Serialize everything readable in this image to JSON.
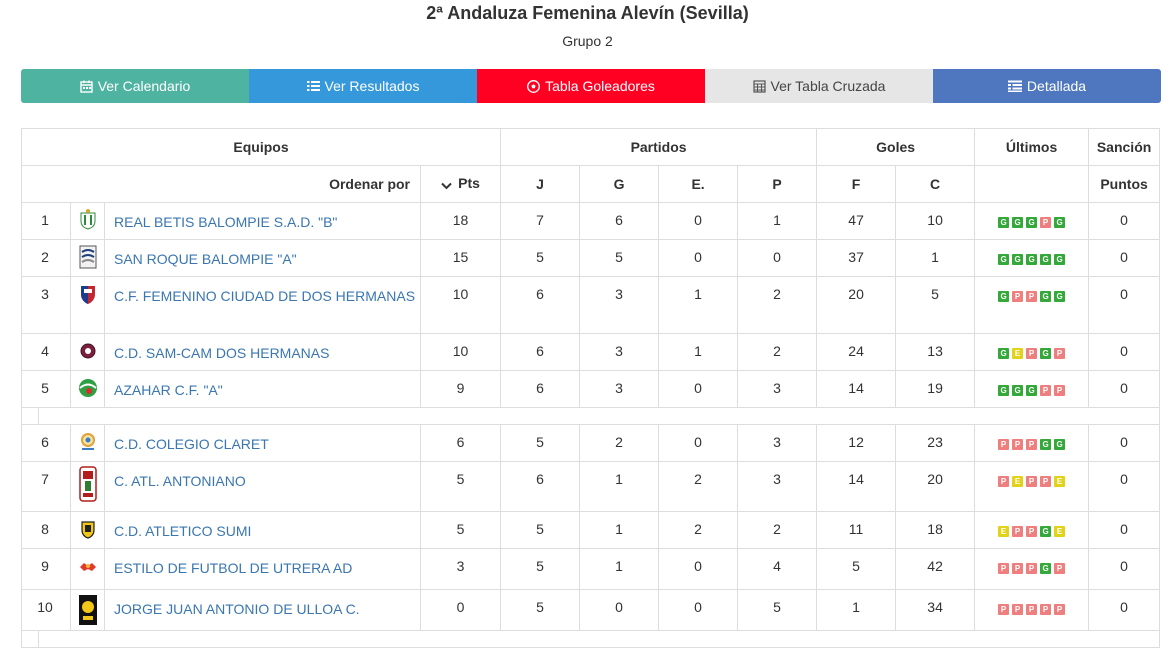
{
  "page": {
    "title": "2ª Andaluza Femenina Alevín (Sevilla)",
    "subtitle": "Grupo 2"
  },
  "nav": [
    {
      "label": "Ver Calendario",
      "icon": "calendar-icon",
      "color": "#4fb3a1"
    },
    {
      "label": "Ver Resultados",
      "icon": "list-icon",
      "color": "#3498db"
    },
    {
      "label": "Tabla Goleadores",
      "icon": "soccer-ball-icon",
      "color": "#ff0023"
    },
    {
      "label": "Ver Tabla Cruzada",
      "icon": "table-grid-icon",
      "color": "#e6e6e6"
    },
    {
      "label": "Detallada",
      "icon": "detail-list-icon",
      "color": "#4f77c0"
    }
  ],
  "table": {
    "groups": {
      "equipos": "Equipos",
      "partidos": "Partidos",
      "goles": "Goles",
      "ultimos": "Últimos",
      "sancion": "Sanción"
    },
    "columns": {
      "ordenar": "Ordenar por",
      "pts": "Pts",
      "j": "J",
      "g": "G",
      "e": "E.",
      "p": "P",
      "f": "F",
      "c": "C",
      "puntos": "Puntos"
    },
    "rows": [
      {
        "pos": "1",
        "team": "REAL BETIS BALOMPIE S.A.D. \"B\"",
        "pts": "18",
        "j": "7",
        "g": "6",
        "e": "0",
        "p": "1",
        "f": "47",
        "c": "10",
        "last": [
          "G",
          "G",
          "G",
          "P",
          "G"
        ],
        "sancion": "0"
      },
      {
        "pos": "2",
        "team": "SAN ROQUE BALOMPIE \"A\"",
        "pts": "15",
        "j": "5",
        "g": "5",
        "e": "0",
        "p": "0",
        "f": "37",
        "c": "1",
        "last": [
          "G",
          "G",
          "G",
          "G",
          "G"
        ],
        "sancion": "0"
      },
      {
        "pos": "3",
        "team": "C.F. FEMENINO CIUDAD DE DOS HERMANAS",
        "pts": "10",
        "j": "6",
        "g": "3",
        "e": "1",
        "p": "2",
        "f": "20",
        "c": "5",
        "last": [
          "G",
          "P",
          "P",
          "G",
          "G"
        ],
        "sancion": "0"
      },
      {
        "pos": "4",
        "team": "C.D. SAM-CAM DOS HERMANAS",
        "pts": "10",
        "j": "6",
        "g": "3",
        "e": "1",
        "p": "2",
        "f": "24",
        "c": "13",
        "last": [
          "G",
          "E",
          "P",
          "G",
          "P"
        ],
        "sancion": "0"
      },
      {
        "pos": "5",
        "team": "AZAHAR C.F. \"A\"",
        "pts": "9",
        "j": "6",
        "g": "3",
        "e": "0",
        "p": "3",
        "f": "14",
        "c": "19",
        "last": [
          "G",
          "G",
          "G",
          "P",
          "P"
        ],
        "sancion": "0"
      },
      {
        "pos": "6",
        "team": "C.D. COLEGIO CLARET",
        "pts": "6",
        "j": "5",
        "g": "2",
        "e": "0",
        "p": "3",
        "f": "12",
        "c": "23",
        "last": [
          "P",
          "P",
          "P",
          "G",
          "G"
        ],
        "sancion": "0"
      },
      {
        "pos": "7",
        "team": "C. ATL. ANTONIANO",
        "pts": "5",
        "j": "6",
        "g": "1",
        "e": "2",
        "p": "3",
        "f": "14",
        "c": "20",
        "last": [
          "P",
          "E",
          "P",
          "P",
          "E"
        ],
        "sancion": "0"
      },
      {
        "pos": "8",
        "team": "C.D. ATLETICO SUMI",
        "pts": "5",
        "j": "5",
        "g": "1",
        "e": "2",
        "p": "2",
        "f": "11",
        "c": "18",
        "last": [
          "E",
          "P",
          "P",
          "G",
          "E"
        ],
        "sancion": "0"
      },
      {
        "pos": "9",
        "team": "ESTILO DE FUTBOL DE UTRERA AD",
        "pts": "3",
        "j": "5",
        "g": "1",
        "e": "0",
        "p": "4",
        "f": "5",
        "c": "42",
        "last": [
          "P",
          "P",
          "P",
          "G",
          "P"
        ],
        "sancion": "0"
      },
      {
        "pos": "10",
        "team": "JORGE JUAN ANTONIO DE ULLOA C.",
        "pts": "0",
        "j": "5",
        "g": "0",
        "e": "0",
        "p": "5",
        "f": "1",
        "c": "34",
        "last": [
          "P",
          "P",
          "P",
          "P",
          "P"
        ],
        "sancion": "0"
      }
    ]
  },
  "colors": {
    "link": "#3a76b0",
    "win": "#35a83a",
    "loss": "#ef7f7f",
    "draw": "#e3d21a"
  }
}
